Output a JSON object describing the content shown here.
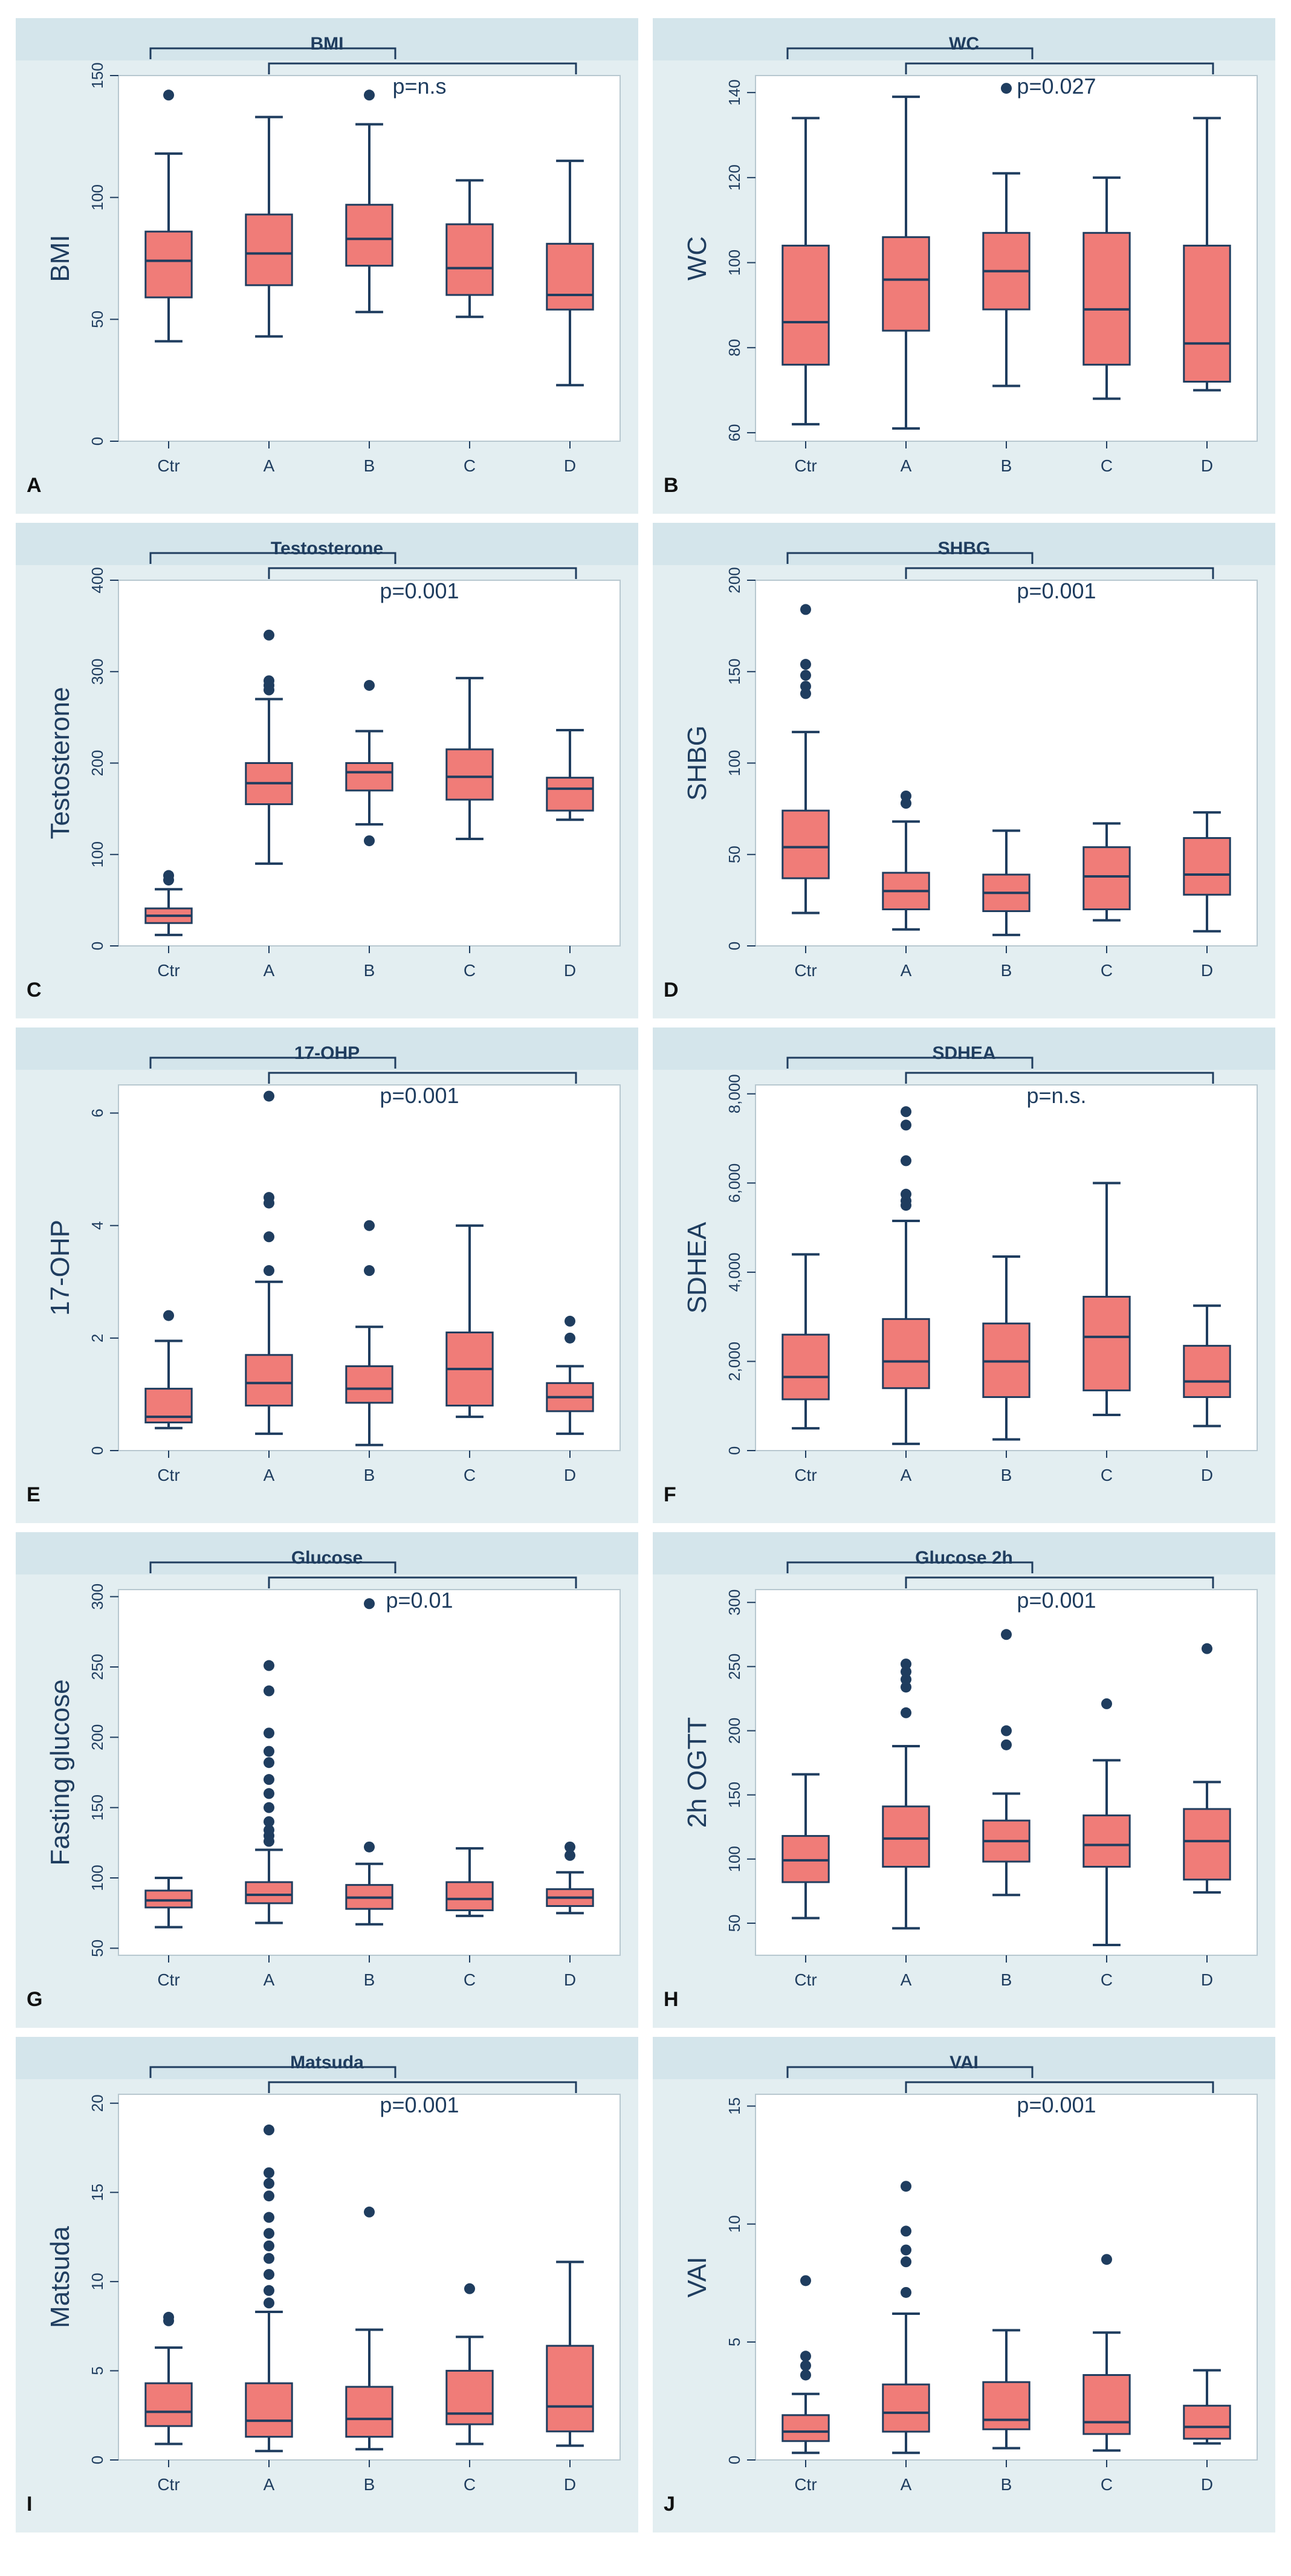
{
  "figure": {
    "colors": {
      "panel_bg": "#e3eef1",
      "plot_bg": "#ffffff",
      "box_fill": "#f07c78",
      "box_stroke": "#1f3d5f",
      "whisker": "#1f3d5f",
      "outlier": "#1f3d5f",
      "title_band": "#c9dee6",
      "bracket": "#1f3d5f",
      "axis_text": "#1f3d5f",
      "title_text": "#1f3d5f"
    }
  },
  "chart_data": [
    {
      "type": "box",
      "panel_letter": "A",
      "title": "BMI",
      "ylabel": "BMI",
      "annotation": "p=n.s",
      "ylim": [
        0,
        150
      ],
      "yticks": [
        0,
        50,
        100,
        150
      ],
      "ytick_labels": [
        "0",
        "50",
        "100",
        "150"
      ],
      "categories": [
        "Ctr",
        "A",
        "B",
        "C",
        "D"
      ],
      "boxes": [
        {
          "whislo": 41,
          "q1": 59,
          "med": 74,
          "q3": 86,
          "whishi": 118,
          "fliers": [
            142
          ]
        },
        {
          "whislo": 43,
          "q1": 64,
          "med": 77,
          "q3": 93,
          "whishi": 133,
          "fliers": []
        },
        {
          "whislo": 53,
          "q1": 72,
          "med": 83,
          "q3": 97,
          "whishi": 130,
          "fliers": [
            142
          ]
        },
        {
          "whislo": 51,
          "q1": 60,
          "med": 71,
          "q3": 89,
          "whishi": 107,
          "fliers": []
        },
        {
          "whislo": 23,
          "q1": 54,
          "med": 60,
          "q3": 81,
          "whishi": 115,
          "fliers": []
        }
      ]
    },
    {
      "type": "box",
      "panel_letter": "B",
      "title": "WC",
      "ylabel": "WC",
      "annotation": "p=0.027",
      "ylim": [
        58,
        144
      ],
      "yticks": [
        60,
        80,
        100,
        120,
        140
      ],
      "ytick_labels": [
        "60",
        "80",
        "100",
        "120",
        "140"
      ],
      "categories": [
        "Ctr",
        "A",
        "B",
        "C",
        "D"
      ],
      "boxes": [
        {
          "whislo": 62,
          "q1": 76,
          "med": 86,
          "q3": 104,
          "whishi": 134,
          "fliers": []
        },
        {
          "whislo": 61,
          "q1": 84,
          "med": 96,
          "q3": 106,
          "whishi": 139,
          "fliers": []
        },
        {
          "whislo": 71,
          "q1": 89,
          "med": 98,
          "q3": 107,
          "whishi": 121,
          "fliers": [
            141
          ]
        },
        {
          "whislo": 68,
          "q1": 76,
          "med": 89,
          "q3": 107,
          "whishi": 120,
          "fliers": []
        },
        {
          "whislo": 70,
          "q1": 72,
          "med": 81,
          "q3": 104,
          "whishi": 134,
          "fliers": []
        }
      ]
    },
    {
      "type": "box",
      "panel_letter": "C",
      "title": "Testosterone",
      "ylabel": "Testosterone",
      "annotation": "p=0.001",
      "ylim": [
        0,
        400
      ],
      "yticks": [
        0,
        100,
        200,
        300,
        400
      ],
      "ytick_labels": [
        "0",
        "100",
        "200",
        "300",
        "400"
      ],
      "categories": [
        "Ctr",
        "A",
        "B",
        "C",
        "D"
      ],
      "boxes": [
        {
          "whislo": 12,
          "q1": 25,
          "med": 33,
          "q3": 41,
          "whishi": 62,
          "fliers": [
            72,
            77
          ]
        },
        {
          "whislo": 90,
          "q1": 155,
          "med": 178,
          "q3": 200,
          "whishi": 270,
          "fliers": [
            280,
            285,
            290,
            340
          ]
        },
        {
          "whislo": 133,
          "q1": 170,
          "med": 190,
          "q3": 200,
          "whishi": 235,
          "fliers": [
            115,
            285
          ]
        },
        {
          "whislo": 117,
          "q1": 160,
          "med": 185,
          "q3": 215,
          "whishi": 293,
          "fliers": []
        },
        {
          "whislo": 138,
          "q1": 148,
          "med": 172,
          "q3": 184,
          "whishi": 236,
          "fliers": []
        }
      ]
    },
    {
      "type": "box",
      "panel_letter": "D",
      "title": "SHBG",
      "ylabel": "SHBG",
      "annotation": "p=0.001",
      "ylim": [
        0,
        200
      ],
      "yticks": [
        0,
        50,
        100,
        150,
        200
      ],
      "ytick_labels": [
        "0",
        "50",
        "100",
        "150",
        "200"
      ],
      "categories": [
        "Ctr",
        "A",
        "B",
        "C",
        "D"
      ],
      "boxes": [
        {
          "whislo": 18,
          "q1": 37,
          "med": 54,
          "q3": 74,
          "whishi": 117,
          "fliers": [
            138,
            142,
            148,
            154,
            184
          ]
        },
        {
          "whislo": 9,
          "q1": 20,
          "med": 30,
          "q3": 40,
          "whishi": 68,
          "fliers": [
            78,
            82
          ]
        },
        {
          "whislo": 6,
          "q1": 19,
          "med": 29,
          "q3": 39,
          "whishi": 63,
          "fliers": []
        },
        {
          "whislo": 14,
          "q1": 20,
          "med": 38,
          "q3": 54,
          "whishi": 67,
          "fliers": []
        },
        {
          "whislo": 8,
          "q1": 28,
          "med": 39,
          "q3": 59,
          "whishi": 73,
          "fliers": []
        }
      ]
    },
    {
      "type": "box",
      "panel_letter": "E",
      "title": "17-OHP",
      "ylabel": "17-OHP",
      "annotation": "p=0.001",
      "ylim": [
        0,
        6.5
      ],
      "yticks": [
        0,
        2,
        4,
        6
      ],
      "ytick_labels": [
        "0",
        "2",
        "4",
        "6"
      ],
      "categories": [
        "Ctr",
        "A",
        "B",
        "C",
        "D"
      ],
      "boxes": [
        {
          "whislo": 0.4,
          "q1": 0.5,
          "med": 0.6,
          "q3": 1.1,
          "whishi": 1.95,
          "fliers": [
            2.4
          ]
        },
        {
          "whislo": 0.3,
          "q1": 0.8,
          "med": 1.2,
          "q3": 1.7,
          "whishi": 3.0,
          "fliers": [
            3.2,
            3.8,
            4.4,
            4.5,
            6.3
          ]
        },
        {
          "whislo": 0.1,
          "q1": 0.85,
          "med": 1.1,
          "q3": 1.5,
          "whishi": 2.2,
          "fliers": [
            3.2,
            4.0
          ]
        },
        {
          "whislo": 0.6,
          "q1": 0.8,
          "med": 1.45,
          "q3": 2.1,
          "whishi": 4.0,
          "fliers": []
        },
        {
          "whislo": 0.3,
          "q1": 0.7,
          "med": 0.95,
          "q3": 1.2,
          "whishi": 1.5,
          "fliers": [
            2.0,
            2.3
          ]
        }
      ]
    },
    {
      "type": "box",
      "panel_letter": "F",
      "title": "SDHEA",
      "ylabel": "SDHEA",
      "annotation": "p=n.s.",
      "ylim": [
        0,
        8200
      ],
      "yticks": [
        0,
        2000,
        4000,
        6000,
        8000
      ],
      "ytick_labels": [
        "0",
        "2,000",
        "4,000",
        "6,000",
        "8,000"
      ],
      "categories": [
        "Ctr",
        "A",
        "B",
        "C",
        "D"
      ],
      "boxes": [
        {
          "whislo": 500,
          "q1": 1150,
          "med": 1650,
          "q3": 2600,
          "whishi": 4400,
          "fliers": []
        },
        {
          "whislo": 150,
          "q1": 1400,
          "med": 2000,
          "q3": 2950,
          "whishi": 5150,
          "fliers": [
            5500,
            5600,
            5750,
            6500,
            7300,
            7600
          ]
        },
        {
          "whislo": 250,
          "q1": 1200,
          "med": 2000,
          "q3": 2850,
          "whishi": 4350,
          "fliers": []
        },
        {
          "whislo": 800,
          "q1": 1350,
          "med": 2550,
          "q3": 3450,
          "whishi": 6000,
          "fliers": []
        },
        {
          "whislo": 550,
          "q1": 1200,
          "med": 1550,
          "q3": 2350,
          "whishi": 3250,
          "fliers": []
        }
      ]
    },
    {
      "type": "box",
      "panel_letter": "G",
      "title": "Glucose",
      "ylabel": "Fasting glucose",
      "annotation": "p=0.01",
      "ylim": [
        45,
        305
      ],
      "yticks": [
        50,
        100,
        150,
        200,
        250,
        300
      ],
      "ytick_labels": [
        "50",
        "100",
        "150",
        "200",
        "250",
        "300"
      ],
      "categories": [
        "Ctr",
        "A",
        "B",
        "C",
        "D"
      ],
      "boxes": [
        {
          "whislo": 65,
          "q1": 79,
          "med": 84,
          "q3": 91,
          "whishi": 100,
          "fliers": []
        },
        {
          "whislo": 68,
          "q1": 82,
          "med": 88,
          "q3": 97,
          "whishi": 120,
          "fliers": [
            126,
            130,
            134,
            140,
            150,
            160,
            170,
            182,
            190,
            203,
            233,
            251
          ]
        },
        {
          "whislo": 67,
          "q1": 78,
          "med": 86,
          "q3": 95,
          "whishi": 110,
          "fliers": [
            122,
            295
          ]
        },
        {
          "whislo": 73,
          "q1": 77,
          "med": 85,
          "q3": 97,
          "whishi": 121,
          "fliers": []
        },
        {
          "whislo": 75,
          "q1": 80,
          "med": 86,
          "q3": 92,
          "whishi": 104,
          "fliers": [
            116,
            122
          ]
        }
      ]
    },
    {
      "type": "box",
      "panel_letter": "H",
      "title": "Glucose 2h",
      "ylabel": "2h OGTT",
      "annotation": "p=0.001",
      "ylim": [
        25,
        310
      ],
      "yticks": [
        50,
        100,
        150,
        200,
        250,
        300
      ],
      "ytick_labels": [
        "50",
        "100",
        "150",
        "200",
        "250",
        "300"
      ],
      "categories": [
        "Ctr",
        "A",
        "B",
        "C",
        "D"
      ],
      "boxes": [
        {
          "whislo": 54,
          "q1": 82,
          "med": 99,
          "q3": 118,
          "whishi": 166,
          "fliers": []
        },
        {
          "whislo": 46,
          "q1": 94,
          "med": 116,
          "q3": 141,
          "whishi": 188,
          "fliers": [
            214,
            234,
            240,
            246,
            252
          ]
        },
        {
          "whislo": 72,
          "q1": 98,
          "med": 114,
          "q3": 130,
          "whishi": 151,
          "fliers": [
            189,
            200,
            275
          ]
        },
        {
          "whislo": 33,
          "q1": 94,
          "med": 111,
          "q3": 134,
          "whishi": 177,
          "fliers": [
            221
          ]
        },
        {
          "whislo": 74,
          "q1": 84,
          "med": 114,
          "q3": 139,
          "whishi": 160,
          "fliers": [
            264
          ]
        }
      ]
    },
    {
      "type": "box",
      "panel_letter": "I",
      "title": "Matsuda",
      "ylabel": "Matsuda",
      "annotation": "p=0.001",
      "ylim": [
        0,
        20.5
      ],
      "yticks": [
        0,
        5,
        10,
        15,
        20
      ],
      "ytick_labels": [
        "0",
        "5",
        "10",
        "15",
        "20"
      ],
      "categories": [
        "Ctr",
        "A",
        "B",
        "C",
        "D"
      ],
      "boxes": [
        {
          "whislo": 0.9,
          "q1": 1.9,
          "med": 2.7,
          "q3": 4.3,
          "whishi": 6.3,
          "fliers": [
            7.8,
            8.0
          ]
        },
        {
          "whislo": 0.5,
          "q1": 1.3,
          "med": 2.2,
          "q3": 4.3,
          "whishi": 8.3,
          "fliers": [
            8.8,
            9.5,
            10.4,
            11.3,
            12.0,
            12.7,
            13.6,
            14.8,
            15.5,
            16.1,
            18.5
          ]
        },
        {
          "whislo": 0.6,
          "q1": 1.3,
          "med": 2.3,
          "q3": 4.1,
          "whishi": 7.3,
          "fliers": [
            13.9
          ]
        },
        {
          "whislo": 0.9,
          "q1": 2.0,
          "med": 2.6,
          "q3": 5.0,
          "whishi": 6.9,
          "fliers": [
            9.6
          ]
        },
        {
          "whislo": 0.8,
          "q1": 1.6,
          "med": 3.0,
          "q3": 6.4,
          "whishi": 11.1,
          "fliers": []
        }
      ]
    },
    {
      "type": "box",
      "panel_letter": "J",
      "title": "VAI",
      "ylabel": "VAI",
      "annotation": "p=0.001",
      "ylim": [
        0,
        15.5
      ],
      "yticks": [
        0,
        5,
        10,
        15
      ],
      "ytick_labels": [
        "0",
        "5",
        "10",
        "15"
      ],
      "categories": [
        "Ctr",
        "A",
        "B",
        "C",
        "D"
      ],
      "boxes": [
        {
          "whislo": 0.3,
          "q1": 0.8,
          "med": 1.2,
          "q3": 1.9,
          "whishi": 2.8,
          "fliers": [
            3.6,
            4.0,
            4.4,
            7.6
          ]
        },
        {
          "whislo": 0.3,
          "q1": 1.2,
          "med": 2.0,
          "q3": 3.2,
          "whishi": 6.2,
          "fliers": [
            7.1,
            8.4,
            8.9,
            9.7,
            11.6
          ]
        },
        {
          "whislo": 0.5,
          "q1": 1.3,
          "med": 1.7,
          "q3": 3.3,
          "whishi": 5.5,
          "fliers": []
        },
        {
          "whislo": 0.4,
          "q1": 1.1,
          "med": 1.6,
          "q3": 3.6,
          "whishi": 5.4,
          "fliers": [
            8.5
          ]
        },
        {
          "whislo": 0.7,
          "q1": 0.9,
          "med": 1.4,
          "q3": 2.3,
          "whishi": 3.8,
          "fliers": []
        }
      ]
    }
  ]
}
